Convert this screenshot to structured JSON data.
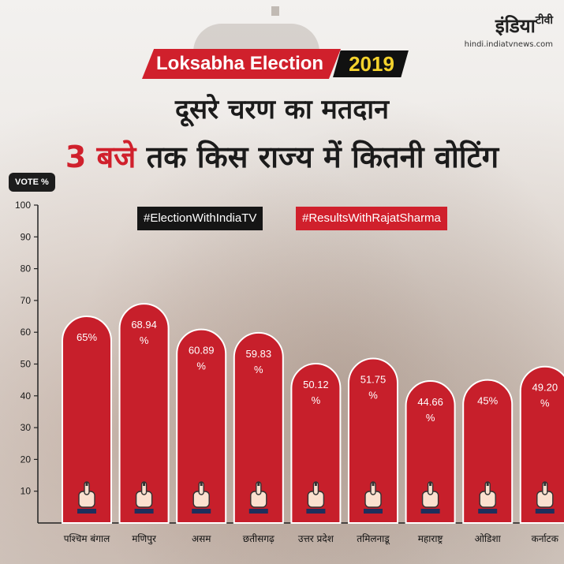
{
  "brand": {
    "name": "इंडिया",
    "suffix": "टीवी",
    "url": "hindi.indiatvnews.com"
  },
  "banner": {
    "left": "Loksabha Election",
    "right": "2019"
  },
  "titles": {
    "line1": "दूसरे चरण का मतदान",
    "line2_red": "3 बजे",
    "line2_rest": " तक किस राज्य में कितनी वोटिंग"
  },
  "hashtags": {
    "tag1": "#ElectionWithIndiaTV",
    "tag2": "#ResultsWithRajatSharma"
  },
  "colors": {
    "accent": "#d0202c",
    "bar": "#c71f2b",
    "dark": "#151515",
    "highlight": "#f4d22d"
  },
  "chart_data": {
    "type": "bar",
    "ylabel": "VOTE %",
    "ylim": [
      0,
      100
    ],
    "yticks": [
      10,
      20,
      30,
      40,
      50,
      60,
      70,
      80,
      90,
      100
    ],
    "categories": [
      "पश्चिम बंगाल",
      "मणिपुर",
      "असम",
      "छतीसगढ़",
      "उत्तर प्रदेश",
      "तमिलनाडू",
      "महाराष्ट्र",
      "ओडिशा",
      "कर्नाटक"
    ],
    "values": [
      65,
      68.94,
      60.89,
      59.83,
      50.12,
      51.75,
      44.66,
      45,
      49.2
    ],
    "labels": [
      [
        "65%"
      ],
      [
        "68.94",
        "%"
      ],
      [
        "60.89",
        "%"
      ],
      [
        "59.83",
        "%"
      ],
      [
        "50.12",
        "%"
      ],
      [
        "51.75",
        "%"
      ],
      [
        "44.66",
        "%"
      ],
      [
        "45%"
      ],
      [
        "49.20",
        "%"
      ]
    ],
    "bar_icon": "voting-finger-icon",
    "grid": false,
    "legend": "none"
  }
}
